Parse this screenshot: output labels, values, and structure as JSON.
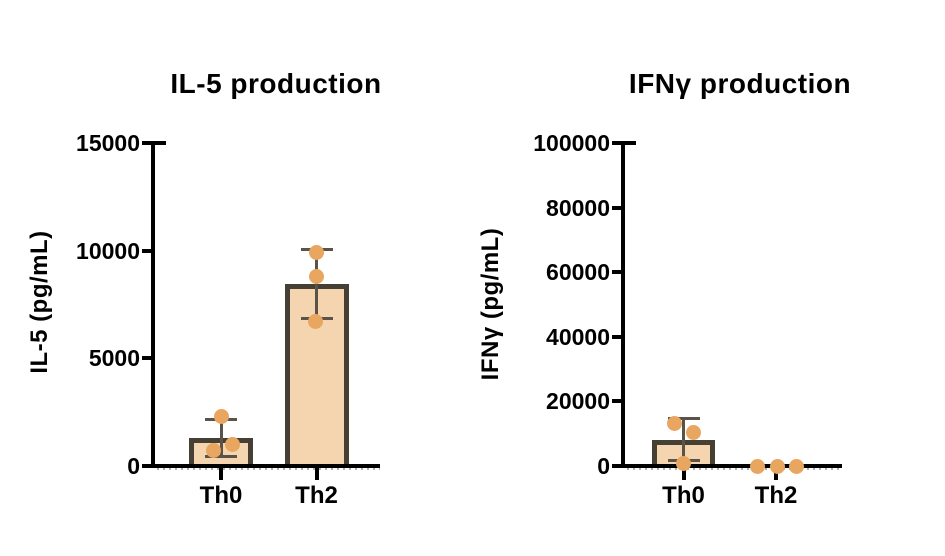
{
  "chart_data": [
    {
      "type": "bar",
      "title": "IL-5 production",
      "xlabel": "",
      "ylabel": "IL-5 (pg/mL)",
      "categories": [
        "Th0",
        "Th2"
      ],
      "ylim": [
        0,
        15000
      ],
      "yticks": [
        0,
        5000,
        10000,
        15000
      ],
      "ytick_labels": [
        "0",
        "5000",
        "10000",
        "15000"
      ],
      "grid": false,
      "legend": "none",
      "error_bar_type": "mean ± SD",
      "bars": [
        {
          "category": "Th0",
          "mean": 1300,
          "sd": 850,
          "points": [
            2300,
            1000,
            700
          ],
          "point_dx": [
            0,
            11,
            -8
          ]
        },
        {
          "category": "Th2",
          "mean": 8450,
          "sd": 1600,
          "points": [
            9900,
            8800,
            6700
          ],
          "point_dx": [
            0,
            0,
            -1
          ]
        }
      ]
    },
    {
      "type": "bar",
      "title": "IFNγ production",
      "xlabel": "",
      "ylabel": "IFNγ (pg/mL)",
      "categories": [
        "Th0",
        "Th2"
      ],
      "ylim": [
        0,
        100000
      ],
      "yticks": [
        0,
        20000,
        40000,
        60000,
        80000,
        100000
      ],
      "ytick_labels": [
        "0",
        "20000",
        "40000",
        "60000",
        "80000",
        "100000"
      ],
      "grid": false,
      "legend": "none",
      "error_bar_type": "mean ± SD",
      "bars": [
        {
          "category": "Th0",
          "mean": 8150,
          "sd": 6500,
          "points": [
            13300,
            10300,
            900
          ],
          "point_dx": [
            -9,
            10,
            0
          ]
        },
        {
          "category": "Th2",
          "mean": 0,
          "sd": 0,
          "points": [
            0,
            0,
            0
          ],
          "point_dx": [
            -19,
            1,
            20
          ]
        }
      ]
    }
  ],
  "style": {
    "background": "#FFFFFF",
    "axis_color": "#000000",
    "text_color": "#000000",
    "bar_fill": "#F4D5B0",
    "bar_border": "#453F34",
    "error_color": "#5A5348",
    "point_color": "#E9A661",
    "baseline_dots_color": "#ADADAD"
  }
}
